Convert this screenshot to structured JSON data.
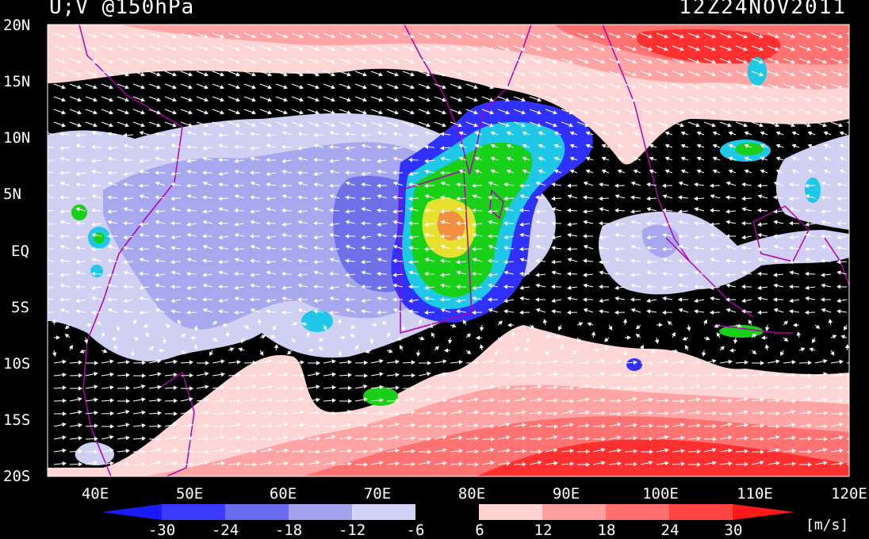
{
  "title_left": "U;V @150hPa",
  "title_right": "12Z24NOV2011",
  "lat_labels": [
    "20N",
    "15N",
    "10N",
    "5N",
    "EQ",
    "5S",
    "10S",
    "15S",
    "20S"
  ],
  "lon_labels": [
    "40E",
    "50E",
    "60E",
    "70E",
    "80E",
    "90E",
    "100E",
    "110E",
    "120E"
  ],
  "colorbar": {
    "labels": [
      "-30",
      "-24",
      "-18",
      "-12",
      "-6",
      "6",
      "12",
      "18",
      "24",
      "30"
    ],
    "colors": [
      "#1a1aff",
      "#3b3bff",
      "#6b6bef",
      "#a3a3ef",
      "#d3d3f5",
      "#000000",
      "#ffd3d3",
      "#ff9f9f",
      "#ff7070",
      "#ff4545",
      "#ff1a1a"
    ],
    "unit": "[m/s]"
  },
  "palette": {
    "black": "#000000",
    "blue_light": "#d0d0f3",
    "blue_mid": "#a8a8ee",
    "blue_dark": "#7070e8",
    "pink_light": "#ffd6d6",
    "pink_mid": "#ffa4a4",
    "red_mid": "#ff7272",
    "red_dark": "#ff3030",
    "coast": "#b000b0"
  },
  "map_features": [
    "wind-vectors",
    "zonal-wind-shading",
    "convective-precip-blobs",
    "coastlines"
  ]
}
